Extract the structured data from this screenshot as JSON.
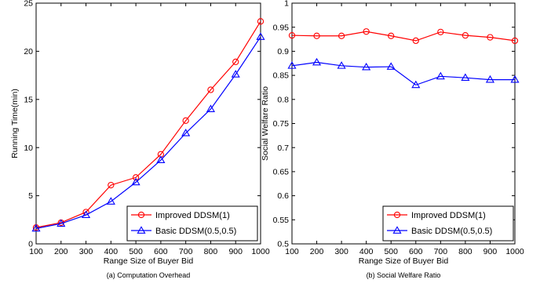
{
  "colors": {
    "improved": "#ff0000",
    "basic": "#0000ff",
    "axis": "#000000"
  },
  "chart_data": [
    {
      "type": "line",
      "caption": "(a) Computation Overhead",
      "xlabel": "Range Size of Buyer Bid",
      "ylabel": "Running Time(min)",
      "x": [
        100,
        200,
        300,
        400,
        500,
        600,
        700,
        800,
        900,
        1000
      ],
      "xlim": [
        100,
        1000
      ],
      "ylim": [
        0,
        25
      ],
      "xticks": [
        "100",
        "200",
        "300",
        "400",
        "500",
        "600",
        "700",
        "800",
        "900",
        "1000"
      ],
      "yticks": [
        "0",
        "5",
        "10",
        "15",
        "20",
        "25"
      ],
      "grid": false,
      "legend_position": "bottom-right",
      "series": [
        {
          "name": "Improved DDSM(1)",
          "marker": "circle",
          "values": [
            1.7,
            2.2,
            3.3,
            6.1,
            6.9,
            9.3,
            12.8,
            16.0,
            18.9,
            23.1
          ]
        },
        {
          "name": "Basic DDSM(0.5,0.5)",
          "marker": "triangle",
          "values": [
            1.6,
            2.1,
            3.0,
            4.4,
            6.4,
            8.7,
            11.5,
            14.0,
            17.6,
            21.5
          ]
        }
      ]
    },
    {
      "type": "line",
      "caption": "(b) Social Welfare Ratio",
      "xlabel": "Range Size of Buyer Bid",
      "ylabel": "Social Welfare Ratio",
      "x": [
        100,
        200,
        300,
        400,
        500,
        600,
        700,
        800,
        900,
        1000
      ],
      "xlim": [
        100,
        1000
      ],
      "ylim": [
        0.5,
        1.0
      ],
      "xticks": [
        "100",
        "200",
        "300",
        "400",
        "500",
        "600",
        "700",
        "800",
        "900",
        "1000"
      ],
      "yticks": [
        "0.5",
        "0.55",
        "0.6",
        "0.65",
        "0.7",
        "0.75",
        "0.8",
        "0.85",
        "0.9",
        "0.95",
        "1"
      ],
      "grid": false,
      "legend_position": "bottom-right",
      "series": [
        {
          "name": "Improved DDSM(1)",
          "marker": "circle",
          "values": [
            0.933,
            0.932,
            0.932,
            0.941,
            0.932,
            0.922,
            0.94,
            0.933,
            0.929,
            0.922
          ]
        },
        {
          "name": "Basic DDSM(0.5,0.5)",
          "marker": "triangle",
          "values": [
            0.87,
            0.877,
            0.87,
            0.867,
            0.868,
            0.83,
            0.848,
            0.845,
            0.841,
            0.841
          ]
        }
      ]
    }
  ]
}
